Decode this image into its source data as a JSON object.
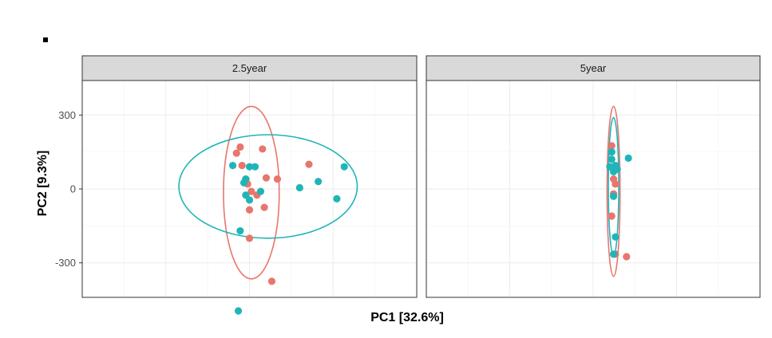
{
  "chart_data": {
    "type": "scatter",
    "xlabel": "PC1 [32.6%]",
    "ylabel": "PC2 [9.3%]",
    "ylim": [
      -440,
      440
    ],
    "y_ticks": [
      -300,
      0,
      300
    ],
    "xlim": [
      -110,
      70
    ],
    "grid": true,
    "colors": {
      "red": "#e8766d",
      "teal": "#1fb5b8"
    },
    "panels": [
      {
        "label": "2.5year",
        "points": [
          {
            "g": "red",
            "x": -25,
            "y": 170
          },
          {
            "g": "red",
            "x": -27,
            "y": 145
          },
          {
            "g": "red",
            "x": -13,
            "y": 162
          },
          {
            "g": "red",
            "x": -24,
            "y": 95
          },
          {
            "g": "red",
            "x": -22,
            "y": 40
          },
          {
            "g": "red",
            "x": -21,
            "y": 20
          },
          {
            "g": "red",
            "x": -19,
            "y": -10
          },
          {
            "g": "red",
            "x": -16,
            "y": -25
          },
          {
            "g": "red",
            "x": -11,
            "y": 45
          },
          {
            "g": "red",
            "x": -5,
            "y": 40
          },
          {
            "g": "red",
            "x": -12,
            "y": -75
          },
          {
            "g": "red",
            "x": -20,
            "y": -85
          },
          {
            "g": "red",
            "x": -20,
            "y": -200
          },
          {
            "g": "red",
            "x": -8,
            "y": -375
          },
          {
            "g": "red",
            "x": 12,
            "y": 100
          },
          {
            "g": "teal",
            "x": -29,
            "y": 95
          },
          {
            "g": "teal",
            "x": -20,
            "y": 90
          },
          {
            "g": "teal",
            "x": -17,
            "y": 90
          },
          {
            "g": "teal",
            "x": -22,
            "y": 40
          },
          {
            "g": "teal",
            "x": -23,
            "y": 25
          },
          {
            "g": "teal",
            "x": -22,
            "y": -25
          },
          {
            "g": "teal",
            "x": -20,
            "y": -45
          },
          {
            "g": "teal",
            "x": -14,
            "y": -10
          },
          {
            "g": "teal",
            "x": -25,
            "y": -170
          },
          {
            "g": "teal",
            "x": -26,
            "y": -495
          },
          {
            "g": "teal",
            "x": 7,
            "y": 5
          },
          {
            "g": "teal",
            "x": 17,
            "y": 30
          },
          {
            "g": "teal",
            "x": 27,
            "y": -40
          },
          {
            "g": "teal",
            "x": 31,
            "y": 90
          }
        ],
        "ellipses": [
          {
            "g": "red",
            "cx": -19,
            "cy": -15,
            "rx": 15,
            "ry": 350
          },
          {
            "g": "teal",
            "cx": -10,
            "cy": 10,
            "rx": 48,
            "ry": 210
          }
        ]
      },
      {
        "label": "5year",
        "points": [
          {
            "g": "red",
            "x": -10,
            "y": 175
          },
          {
            "g": "red",
            "x": -9,
            "y": 40
          },
          {
            "g": "red",
            "x": -8,
            "y": 20
          },
          {
            "g": "red",
            "x": -9,
            "y": -20
          },
          {
            "g": "red",
            "x": -10,
            "y": -110
          },
          {
            "g": "red",
            "x": -8,
            "y": -265
          },
          {
            "g": "red",
            "x": -2,
            "y": -275
          },
          {
            "g": "teal",
            "x": -10,
            "y": 150
          },
          {
            "g": "teal",
            "x": -10,
            "y": 120
          },
          {
            "g": "teal",
            "x": -11,
            "y": 90
          },
          {
            "g": "teal",
            "x": -8,
            "y": 95
          },
          {
            "g": "teal",
            "x": -7,
            "y": 80
          },
          {
            "g": "teal",
            "x": -9,
            "y": 70
          },
          {
            "g": "teal",
            "x": -9,
            "y": -30
          },
          {
            "g": "teal",
            "x": -8,
            "y": -195
          },
          {
            "g": "teal",
            "x": -9,
            "y": -265
          },
          {
            "g": "teal",
            "x": -1,
            "y": 125
          }
        ],
        "ellipses": [
          {
            "g": "red",
            "cx": -9,
            "cy": -10,
            "rx": 3.5,
            "ry": 345
          },
          {
            "g": "teal",
            "cx": -9,
            "cy": 10,
            "rx": 2.8,
            "ry": 280
          }
        ]
      }
    ]
  }
}
